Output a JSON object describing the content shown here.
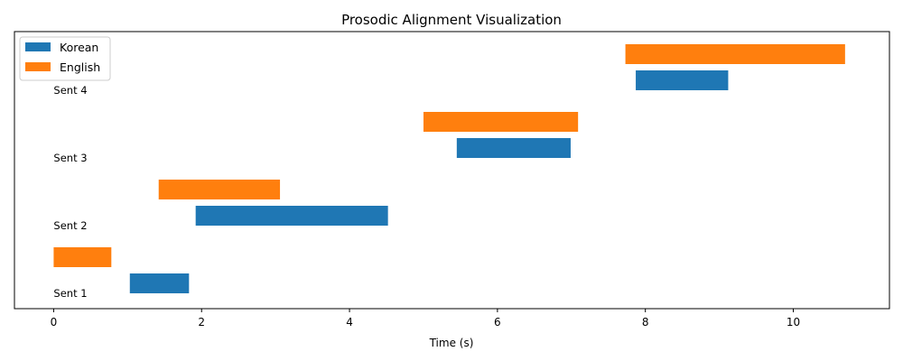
{
  "chart_data": {
    "type": "bar",
    "title": "Prosodic Alignment Visualization",
    "xlabel": "Time (s)",
    "ylabel": "",
    "xlim": [
      -0.53,
      11.3
    ],
    "xticks": [
      "0",
      "2",
      "4",
      "6",
      "8",
      "10"
    ],
    "grid": false,
    "legend_position": "top-left",
    "series": [
      {
        "name": "Korean",
        "color": "#1f77b4"
      },
      {
        "name": "English",
        "color": "#ff7f0e"
      }
    ],
    "sentences": [
      {
        "label": "Sent 1",
        "korean": [
          1.03,
          1.83
        ],
        "english": [
          0.0,
          0.78
        ]
      },
      {
        "label": "Sent 2",
        "korean": [
          1.92,
          4.52
        ],
        "english": [
          1.42,
          3.06
        ]
      },
      {
        "label": "Sent 3",
        "korean": [
          5.45,
          6.99
        ],
        "english": [
          5.0,
          7.09
        ]
      },
      {
        "label": "Sent 4",
        "korean": [
          7.87,
          9.12
        ],
        "english": [
          7.73,
          10.7
        ]
      }
    ]
  }
}
